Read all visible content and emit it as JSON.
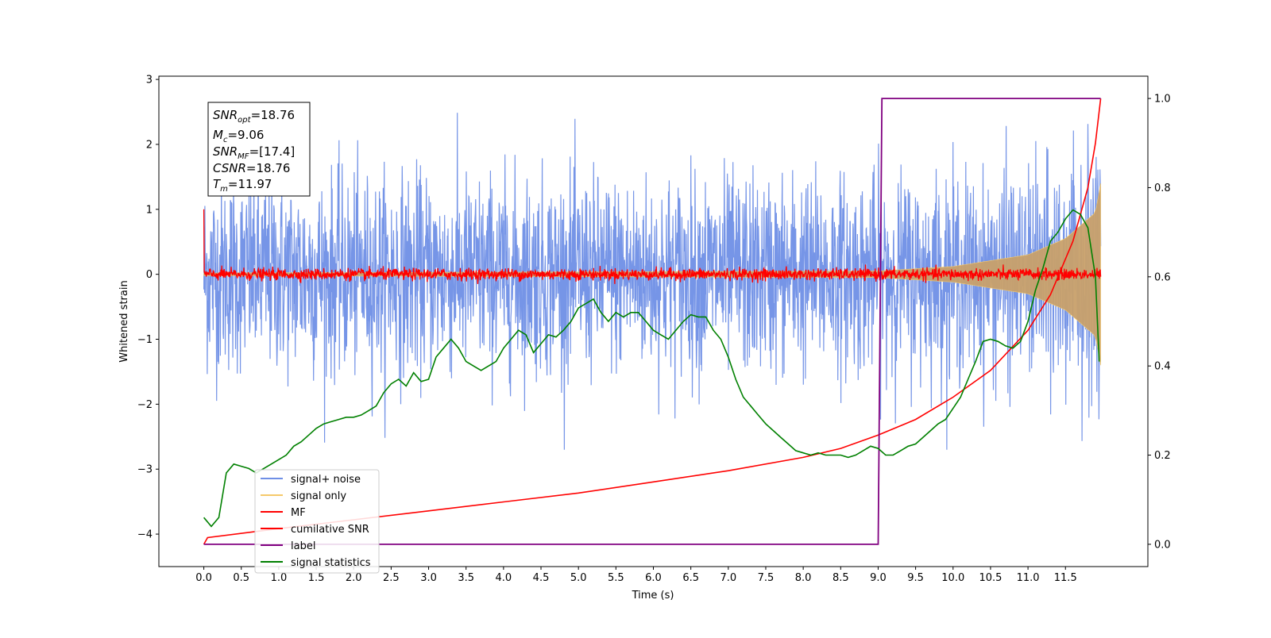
{
  "chart_data": {
    "type": "line",
    "xlabel": "Time (s)",
    "ylabel": "Whitened strain",
    "xlim": [
      -0.6,
      12.6
    ],
    "ylim": [
      -4.5,
      3.05
    ],
    "y2lim": [
      -0.05,
      1.05
    ],
    "grid": false,
    "legend_position": "lower-left",
    "x_ticks": [
      "0.0",
      "0.5",
      "1.0",
      "1.5",
      "2.0",
      "2.5",
      "3.0",
      "3.5",
      "4.0",
      "4.5",
      "5.0",
      "5.5",
      "6.0",
      "6.5",
      "7.0",
      "7.5",
      "8.0",
      "8.5",
      "9.0",
      "9.5",
      "10.0",
      "10.5",
      "11.0",
      "11.5"
    ],
    "y_ticks": [
      "3",
      "2",
      "1",
      "0",
      "−1",
      "−2",
      "−3",
      "−4"
    ],
    "y2_ticks": [
      "0.0",
      "0.2",
      "0.4",
      "0.6",
      "0.8",
      "1.0"
    ],
    "annotation": {
      "snr_opt": {
        "sym": "SNR",
        "sub": "opt",
        "value": "=18.76"
      },
      "mc": {
        "sym": "M",
        "sub": "c",
        "value": "=9.06"
      },
      "snr_mf": {
        "sym": "SNR",
        "sub": "MF",
        "value": "=[17.4]"
      },
      "csnr": {
        "sym": "CSNR",
        "sub": "",
        "value": "=18.76"
      },
      "tm": {
        "sym": "T",
        "sub": "m",
        "value": "=11.97"
      }
    },
    "series": [
      {
        "name": "signal+ noise",
        "color": "#6f8fe6",
        "axis": "left",
        "mean": 0.0,
        "range": [
          -2.7,
          2.7
        ]
      },
      {
        "name": "signal only",
        "color": "#f5c96a",
        "axis": "left",
        "x": [
          0,
          9.0,
          10.0,
          11.0,
          11.5,
          11.9,
          11.97
        ],
        "amplitude": [
          0.02,
          0.05,
          0.12,
          0.3,
          0.55,
          0.95,
          1.4
        ]
      },
      {
        "name": "MF",
        "color": "#ff0000",
        "axis": "left",
        "mean": 0.0,
        "range": [
          -0.15,
          0.15
        ],
        "start_value": 1.0
      },
      {
        "name": "cumilative SNR",
        "color": "#ff0000",
        "axis": "right",
        "x": [
          0,
          0.05,
          1,
          2,
          3,
          4,
          5,
          6,
          7,
          8,
          8.5,
          9,
          9.5,
          10,
          10.5,
          11,
          11.3,
          11.6,
          11.8,
          11.9,
          11.97
        ],
        "y": [
          0.0,
          0.015,
          0.035,
          0.055,
          0.075,
          0.095,
          0.115,
          0.14,
          0.165,
          0.195,
          0.215,
          0.245,
          0.28,
          0.33,
          0.39,
          0.48,
          0.56,
          0.68,
          0.8,
          0.9,
          1.0
        ]
      },
      {
        "name": "label",
        "color": "#800080",
        "axis": "right",
        "x": [
          0,
          9.0,
          9.05,
          11.97
        ],
        "y": [
          0,
          0,
          1,
          1
        ]
      },
      {
        "name": "signal statistics",
        "color": "#008000",
        "axis": "right",
        "x": [
          0,
          0.1,
          0.2,
          0.3,
          0.4,
          0.5,
          0.6,
          0.7,
          0.8,
          0.9,
          1.0,
          1.1,
          1.2,
          1.3,
          1.4,
          1.5,
          1.6,
          1.7,
          1.8,
          1.9,
          2.0,
          2.1,
          2.2,
          2.3,
          2.4,
          2.5,
          2.6,
          2.7,
          2.8,
          2.9,
          3.0,
          3.1,
          3.2,
          3.3,
          3.4,
          3.5,
          3.6,
          3.7,
          3.8,
          3.9,
          4.0,
          4.1,
          4.2,
          4.3,
          4.4,
          4.5,
          4.6,
          4.7,
          4.8,
          4.9,
          5.0,
          5.1,
          5.2,
          5.3,
          5.4,
          5.5,
          5.6,
          5.7,
          5.8,
          5.9,
          6.0,
          6.1,
          6.2,
          6.3,
          6.4,
          6.5,
          6.6,
          6.7,
          6.8,
          6.9,
          7.0,
          7.1,
          7.2,
          7.3,
          7.4,
          7.5,
          7.6,
          7.7,
          7.8,
          7.9,
          8.0,
          8.1,
          8.2,
          8.3,
          8.4,
          8.5,
          8.6,
          8.7,
          8.8,
          8.9,
          9.0,
          9.1,
          9.2,
          9.3,
          9.4,
          9.5,
          9.6,
          9.7,
          9.8,
          9.9,
          10.0,
          10.1,
          10.2,
          10.3,
          10.4,
          10.5,
          10.6,
          10.7,
          10.8,
          10.9,
          11.0,
          11.1,
          11.2,
          11.3,
          11.4,
          11.5,
          11.6,
          11.7,
          11.8,
          11.9,
          11.95
        ],
        "y": [
          0.06,
          0.04,
          0.06,
          0.16,
          0.18,
          0.175,
          0.17,
          0.16,
          0.17,
          0.18,
          0.19,
          0.2,
          0.22,
          0.23,
          0.245,
          0.26,
          0.27,
          0.275,
          0.28,
          0.285,
          0.285,
          0.29,
          0.3,
          0.31,
          0.34,
          0.36,
          0.37,
          0.355,
          0.385,
          0.365,
          0.37,
          0.42,
          0.44,
          0.46,
          0.44,
          0.41,
          0.4,
          0.39,
          0.4,
          0.41,
          0.44,
          0.46,
          0.48,
          0.47,
          0.43,
          0.45,
          0.47,
          0.465,
          0.48,
          0.5,
          0.53,
          0.54,
          0.55,
          0.52,
          0.5,
          0.52,
          0.51,
          0.52,
          0.52,
          0.5,
          0.48,
          0.47,
          0.46,
          0.48,
          0.5,
          0.515,
          0.51,
          0.51,
          0.48,
          0.46,
          0.42,
          0.37,
          0.33,
          0.31,
          0.29,
          0.27,
          0.255,
          0.24,
          0.225,
          0.21,
          0.205,
          0.2,
          0.205,
          0.2,
          0.2,
          0.2,
          0.195,
          0.2,
          0.21,
          0.22,
          0.215,
          0.2,
          0.2,
          0.21,
          0.22,
          0.225,
          0.24,
          0.255,
          0.27,
          0.28,
          0.305,
          0.33,
          0.37,
          0.41,
          0.455,
          0.46,
          0.455,
          0.445,
          0.44,
          0.455,
          0.5,
          0.57,
          0.62,
          0.68,
          0.7,
          0.73,
          0.75,
          0.74,
          0.71,
          0.6,
          0.41
        ]
      }
    ]
  }
}
